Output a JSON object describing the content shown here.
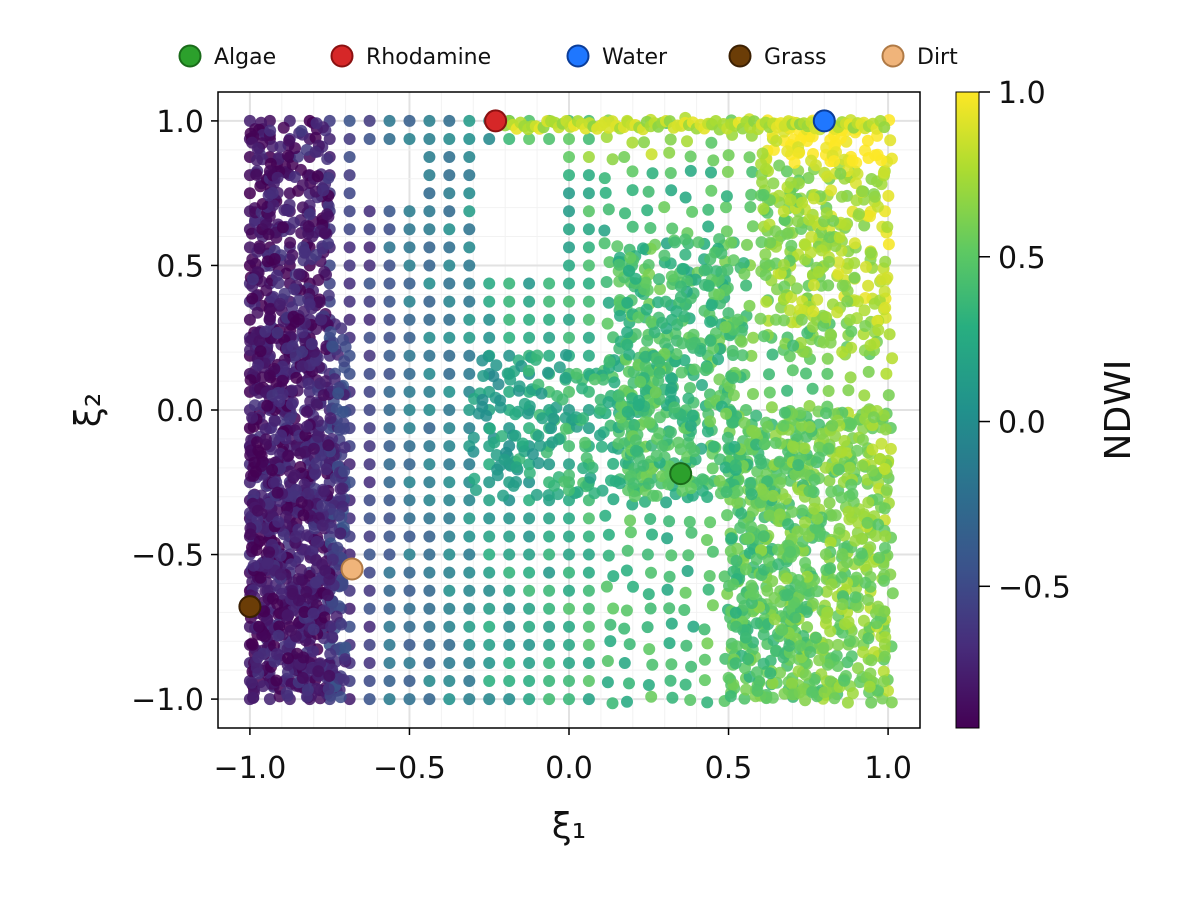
{
  "chart_data": {
    "type": "scatter",
    "xlabel": "ξ₁",
    "ylabel": "ξ₂",
    "xlim": [
      -1.1,
      1.1
    ],
    "ylim": [
      -1.1,
      1.1
    ],
    "xticks": [
      -1.0,
      -0.5,
      0.0,
      0.5,
      1.0
    ],
    "yticks": [
      -1.0,
      -0.5,
      0.0,
      0.5,
      1.0
    ],
    "xtick_labels": [
      "−1.0",
      "−0.5",
      "0.0",
      "0.5",
      "1.0"
    ],
    "ytick_labels": [
      "−1.0",
      "−0.5",
      "0.0",
      "0.5",
      "1.0"
    ],
    "grid": true,
    "legend_position": "top",
    "colorbar": {
      "label": "NDWI",
      "colormap": "viridis",
      "range": [
        -0.93,
        1.0
      ],
      "ticks": [
        -0.5,
        0.0,
        0.5,
        1.0
      ],
      "tick_labels": [
        "−0.5",
        "0.0",
        "0.5",
        "1.0"
      ]
    },
    "background_field": {
      "description": "dense cloud of NDWI-colored points over the full square",
      "regions": [
        {
          "x_range": [
            -1.0,
            -0.65
          ],
          "y_range": [
            -1.0,
            1.0
          ],
          "ndwi": -0.75
        },
        {
          "x_range": [
            -0.65,
            -0.3
          ],
          "y_range": [
            -1.0,
            1.0
          ],
          "ndwi": -0.2
        },
        {
          "x_range": [
            -0.3,
            0.3
          ],
          "y_range": [
            -1.0,
            1.0
          ],
          "ndwi": 0.3
        },
        {
          "x_range": [
            0.3,
            1.0
          ],
          "y_range": [
            -1.0,
            1.0
          ],
          "ndwi": 0.5
        }
      ]
    },
    "series": [
      {
        "name": "Algae",
        "x": 0.35,
        "y": -0.22,
        "color": "#2ca02c",
        "edge": "#1a6b1a"
      },
      {
        "name": "Rhodamine",
        "x": -0.23,
        "y": 1.0,
        "color": "#d62728",
        "edge": "#8b1111"
      },
      {
        "name": "Water",
        "x": 0.8,
        "y": 1.0,
        "color": "#1f77ff",
        "edge": "#0b3d99"
      },
      {
        "name": "Grass",
        "x": -1.0,
        "y": -0.68,
        "color": "#6b3d07",
        "edge": "#3b2003"
      },
      {
        "name": "Dirt",
        "x": -0.68,
        "y": -0.55,
        "color": "#f0b47a",
        "edge": "#b07a45"
      }
    ]
  }
}
